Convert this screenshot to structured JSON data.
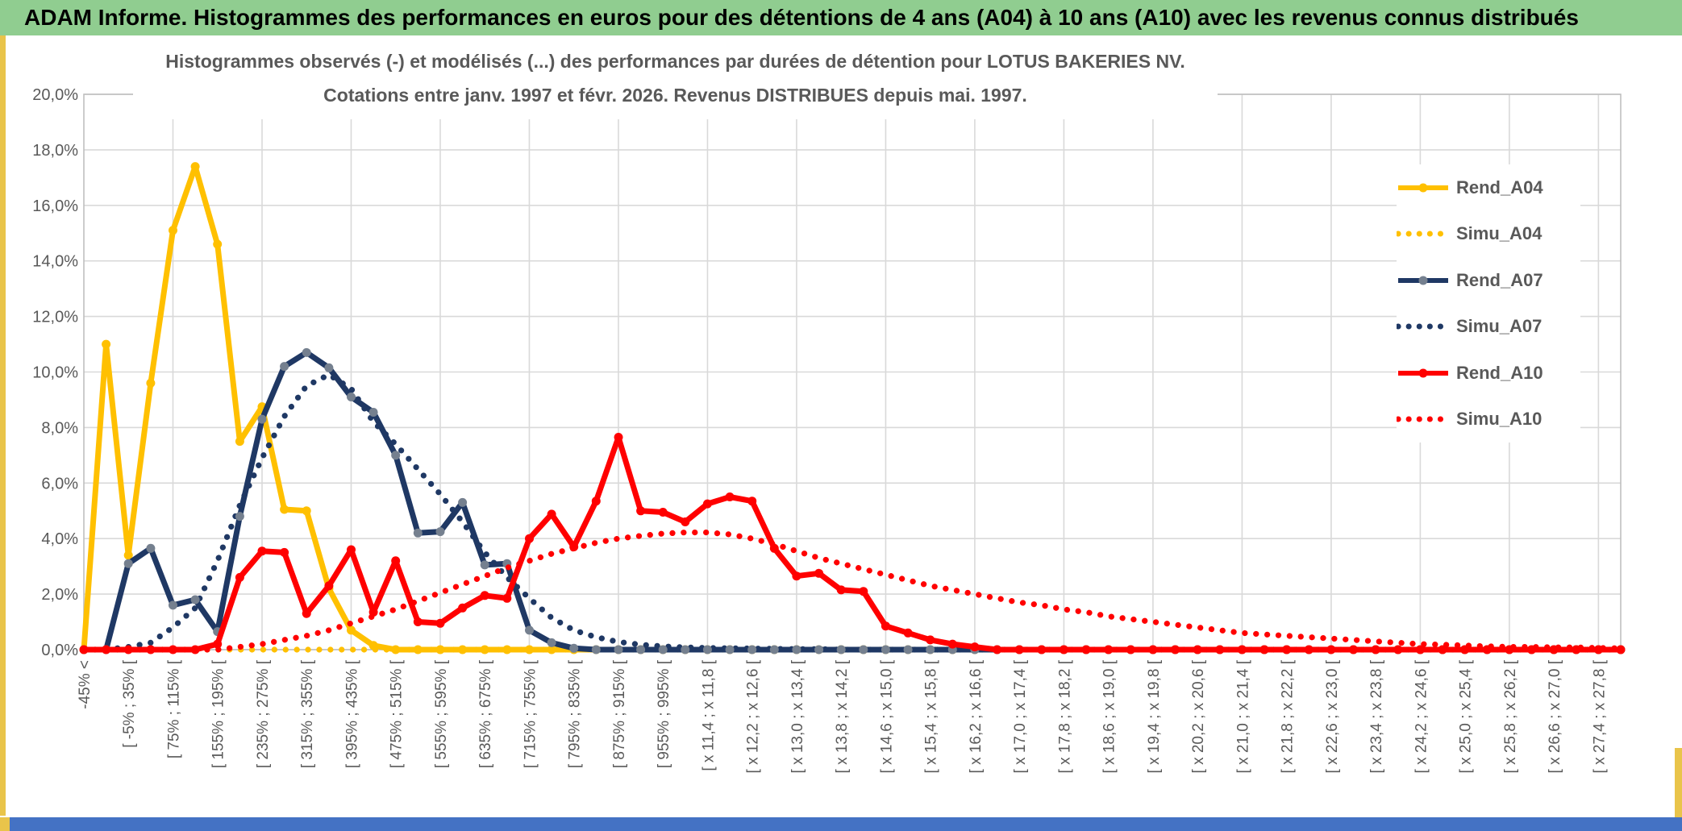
{
  "window": {
    "title": "ADAM Informe. Histogrammes des performances en euros pour des détentions de 4 ans (A04) à 10 ans (A10) avec les revenus connus distribués",
    "colors": {
      "title_bar_green": "#90CD90",
      "bottom_bar_blue": "#4472C4",
      "edge_strip_yellow": "#E9C44A",
      "grid": "#D9D9D9",
      "plot_border": "#BFBFBF",
      "text_gray": "#595959"
    }
  },
  "chart_data": {
    "type": "line",
    "title_line1": "Histogrammes observés (-) et modélisés (...) des performances par durées de détention pour LOTUS BAKERIES NV.",
    "title_line2": "Cotations entre janv. 1997 et févr. 2026. Revenus DISTRIBUES depuis mai. 1997.",
    "ylim": [
      0,
      20
    ],
    "ytick_step": 2,
    "ytick_labels": [
      "0,0%",
      "2,0%",
      "4,0%",
      "6,0%",
      "8,0%",
      "10,0%",
      "12,0%",
      "14,0%",
      "16,0%",
      "18,0%",
      "20,0%"
    ],
    "grid": "on",
    "legend_position": "right",
    "n_points": 70,
    "x_labels_every": 2,
    "categories": [
      "-45% <",
      "[ -5% ; 35% [",
      "[ 75% ; 115% [",
      "[ 155% ; 195% [",
      "[ 235% ; 275% [",
      "[ 315% ; 355% [",
      "[ 395% ; 435% [",
      "[ 475% ; 515% [",
      "[ 555% ; 595% [",
      "[ 635% ; 675% [",
      "[ 715% ; 755% [",
      "[ 795% ; 835% [",
      "[ 875% ; 915% [",
      "[ 955% ; 995% [",
      "[ x 11,4 ; x 11,8 [",
      "[ x 12,2 ; x 12,6 [",
      "[ x 13,0 ; x 13,4 [",
      "[ x 13,8 ; x 14,2 [",
      "[ x 14,6 ; x 15,0 [",
      "[ x 15,4 ; x 15,8 [",
      "[ x 16,2 ; x 16,6 [",
      "[ x 17,0 ; x 17,4 [",
      "[ x 17,8 ; x 18,2 [",
      "[ x 18,6 ; x 19,0 [",
      "[ x 19,4 ; x 19,8 [",
      "[ x 20,2 ; x 20,6 [",
      "[ x 21,0 ; x 21,4 [",
      "[ x 21,8 ; x 22,2 [",
      "[ x 22,6 ; x 23,0 [",
      "[ x 23,4 ; x 23,8 [",
      "[ x 24,2 ; x 24,6 [",
      "[ x 25,0 ; x 25,4 [",
      "[ x 25,8 ; x 26,2 [",
      "[ x 26,6 ; x 27,0 [",
      "[ x 27,4 ; x 27,8 ["
    ],
    "series": [
      {
        "name": "Rend_A04",
        "style": "solid",
        "color": "#FFC000",
        "marker": "#FFC000",
        "values": [
          0,
          11,
          3.4,
          9.6,
          15.1,
          17.4,
          14.6,
          7.5,
          8.75,
          5.05,
          5,
          2.2,
          0.7,
          0.15,
          0,
          0,
          0,
          0,
          0,
          0,
          0,
          0,
          0,
          0,
          0,
          0,
          0,
          0,
          0,
          0,
          0,
          0,
          0,
          0,
          0,
          0,
          0,
          0,
          0,
          0,
          0,
          0,
          0,
          0,
          0,
          0,
          0,
          0,
          0,
          0,
          0,
          0,
          0,
          0,
          0,
          0,
          0,
          0,
          0,
          0,
          0,
          0,
          0,
          0,
          0,
          0,
          0,
          0,
          0,
          0
        ]
      },
      {
        "name": "Simu_A04",
        "style": "dotted",
        "color": "#FFC000",
        "values": [
          0,
          0,
          0,
          0,
          0,
          0,
          0,
          0,
          0,
          0,
          0,
          0,
          0,
          0,
          0,
          0,
          0,
          0,
          0,
          0,
          0,
          0,
          0,
          0,
          0,
          0,
          0,
          0,
          0,
          0,
          0,
          0,
          0,
          0,
          0,
          0,
          0,
          0,
          0,
          0,
          0,
          0,
          0,
          0,
          0,
          0,
          0,
          0,
          0,
          0,
          0,
          0,
          0,
          0,
          0,
          0,
          0,
          0,
          0,
          0,
          0,
          0,
          0,
          0,
          0,
          0,
          0,
          0,
          0,
          0
        ]
      },
      {
        "name": "Rend_A07",
        "style": "solid",
        "color": "#1F3864",
        "marker": "#75808F",
        "values": [
          0,
          0,
          3.1,
          3.65,
          1.6,
          1.8,
          0.65,
          4.8,
          8.3,
          10.2,
          10.7,
          10.15,
          9.1,
          8.55,
          7,
          4.2,
          4.25,
          5.3,
          3.05,
          3.1,
          0.7,
          0.25,
          0.05,
          0,
          0,
          0,
          0,
          0,
          0,
          0,
          0,
          0,
          0,
          0,
          0,
          0,
          0,
          0,
          0,
          0,
          0,
          0,
          0,
          0,
          0,
          0,
          0,
          0,
          0,
          0,
          0,
          0,
          0,
          0,
          0,
          0,
          0,
          0,
          0,
          0,
          0,
          0,
          0,
          0,
          0,
          0,
          0,
          0,
          0,
          0
        ]
      },
      {
        "name": "Simu_A07",
        "style": "dotted",
        "color": "#1F3864",
        "values": [
          0,
          0,
          0.1,
          0.25,
          0.8,
          1.5,
          3.2,
          5.2,
          6.9,
          8.4,
          9.5,
          9.9,
          9.4,
          8.2,
          7.4,
          6.5,
          5.6,
          4.6,
          3.5,
          2.6,
          1.85,
          1.15,
          0.7,
          0.45,
          0.28,
          0.18,
          0.12,
          0.08,
          0.06,
          0.05,
          0.04,
          0.03,
          0.02,
          0.02,
          0,
          0,
          0,
          0,
          0,
          0,
          0,
          0,
          0,
          0,
          0,
          0,
          0,
          0,
          0,
          0,
          0,
          0,
          0,
          0,
          0,
          0,
          0,
          0,
          0,
          0,
          0,
          0,
          0,
          0,
          0,
          0,
          0,
          0,
          0,
          0
        ]
      },
      {
        "name": "Rend_A10",
        "style": "solid",
        "color": "#FF0000",
        "marker": "#FF0000",
        "values": [
          0,
          0,
          0,
          0,
          0,
          0,
          0.2,
          2.6,
          3.55,
          3.5,
          1.3,
          2.3,
          3.6,
          1.35,
          3.2,
          1,
          0.95,
          1.5,
          1.95,
          1.85,
          4,
          4.88,
          3.7,
          5.35,
          7.65,
          5,
          4.95,
          4.6,
          5.25,
          5.5,
          5.35,
          3.65,
          2.65,
          2.75,
          2.15,
          2.1,
          0.85,
          0.6,
          0.35,
          0.2,
          0.1,
          0,
          0,
          0,
          0,
          0,
          0,
          0,
          0,
          0,
          0,
          0,
          0,
          0,
          0,
          0,
          0,
          0,
          0,
          0,
          0,
          0,
          0,
          0,
          0,
          0,
          0,
          0,
          0,
          0
        ]
      },
      {
        "name": "Simu_A10",
        "style": "dotted",
        "color": "#FF0000",
        "values": [
          0,
          0,
          0,
          0,
          0,
          0,
          0,
          0.1,
          0.2,
          0.35,
          0.5,
          0.7,
          0.95,
          1.2,
          1.45,
          1.75,
          2.05,
          2.35,
          2.65,
          2.95,
          3.2,
          3.45,
          3.65,
          3.85,
          4,
          4.1,
          4.18,
          4.22,
          4.22,
          4.15,
          4,
          3.8,
          3.55,
          3.3,
          3.1,
          2.9,
          2.7,
          2.5,
          2.3,
          2.15,
          2,
          1.85,
          1.7,
          1.6,
          1.45,
          1.35,
          1.2,
          1.1,
          1,
          0.9,
          0.8,
          0.7,
          0.6,
          0.55,
          0.5,
          0.45,
          0.4,
          0.35,
          0.3,
          0.25,
          0.2,
          0.18,
          0.15,
          0.12,
          0.1,
          0.1,
          0.08,
          0.08,
          0.06,
          0.05
        ]
      }
    ]
  }
}
